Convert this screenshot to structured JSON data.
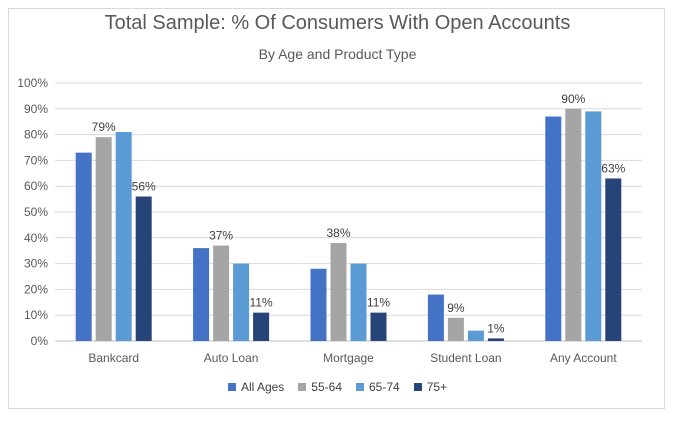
{
  "chart_data": {
    "type": "bar",
    "title": "Total Sample: % Of Consumers With Open Accounts",
    "subtitle": "By Age and Product Type",
    "categories": [
      "Bankcard",
      "Auto Loan",
      "Mortgage",
      "Student Loan",
      "Any Account"
    ],
    "series": [
      {
        "name": "All Ages",
        "color": "#4472c4",
        "values": [
          73,
          36,
          28,
          18,
          87
        ]
      },
      {
        "name": "55-64",
        "color": "#a5a5a5",
        "values": [
          79,
          37,
          38,
          9,
          90
        ]
      },
      {
        "name": "65-74",
        "color": "#5b9bd5",
        "values": [
          81,
          30,
          30,
          4,
          89
        ]
      },
      {
        "name": "75+",
        "color": "#264478",
        "values": [
          56,
          11,
          11,
          1,
          63
        ]
      }
    ],
    "data_labels": [
      {
        "series": 1,
        "category": 0,
        "text": "79%"
      },
      {
        "series": 3,
        "category": 0,
        "text": "56%"
      },
      {
        "series": 1,
        "category": 1,
        "text": "37%"
      },
      {
        "series": 3,
        "category": 1,
        "text": "11%"
      },
      {
        "series": 1,
        "category": 2,
        "text": "38%"
      },
      {
        "series": 3,
        "category": 2,
        "text": "11%"
      },
      {
        "series": 1,
        "category": 3,
        "text": "9%"
      },
      {
        "series": 3,
        "category": 3,
        "text": "1%"
      },
      {
        "series": 1,
        "category": 4,
        "text": "90%"
      },
      {
        "series": 3,
        "category": 4,
        "text": "63%"
      }
    ],
    "y_ticks": [
      "0%",
      "10%",
      "20%",
      "30%",
      "40%",
      "50%",
      "60%",
      "70%",
      "80%",
      "90%",
      "100%"
    ],
    "ylim": [
      0,
      100
    ],
    "grid": true,
    "legend_position": "bottom"
  }
}
